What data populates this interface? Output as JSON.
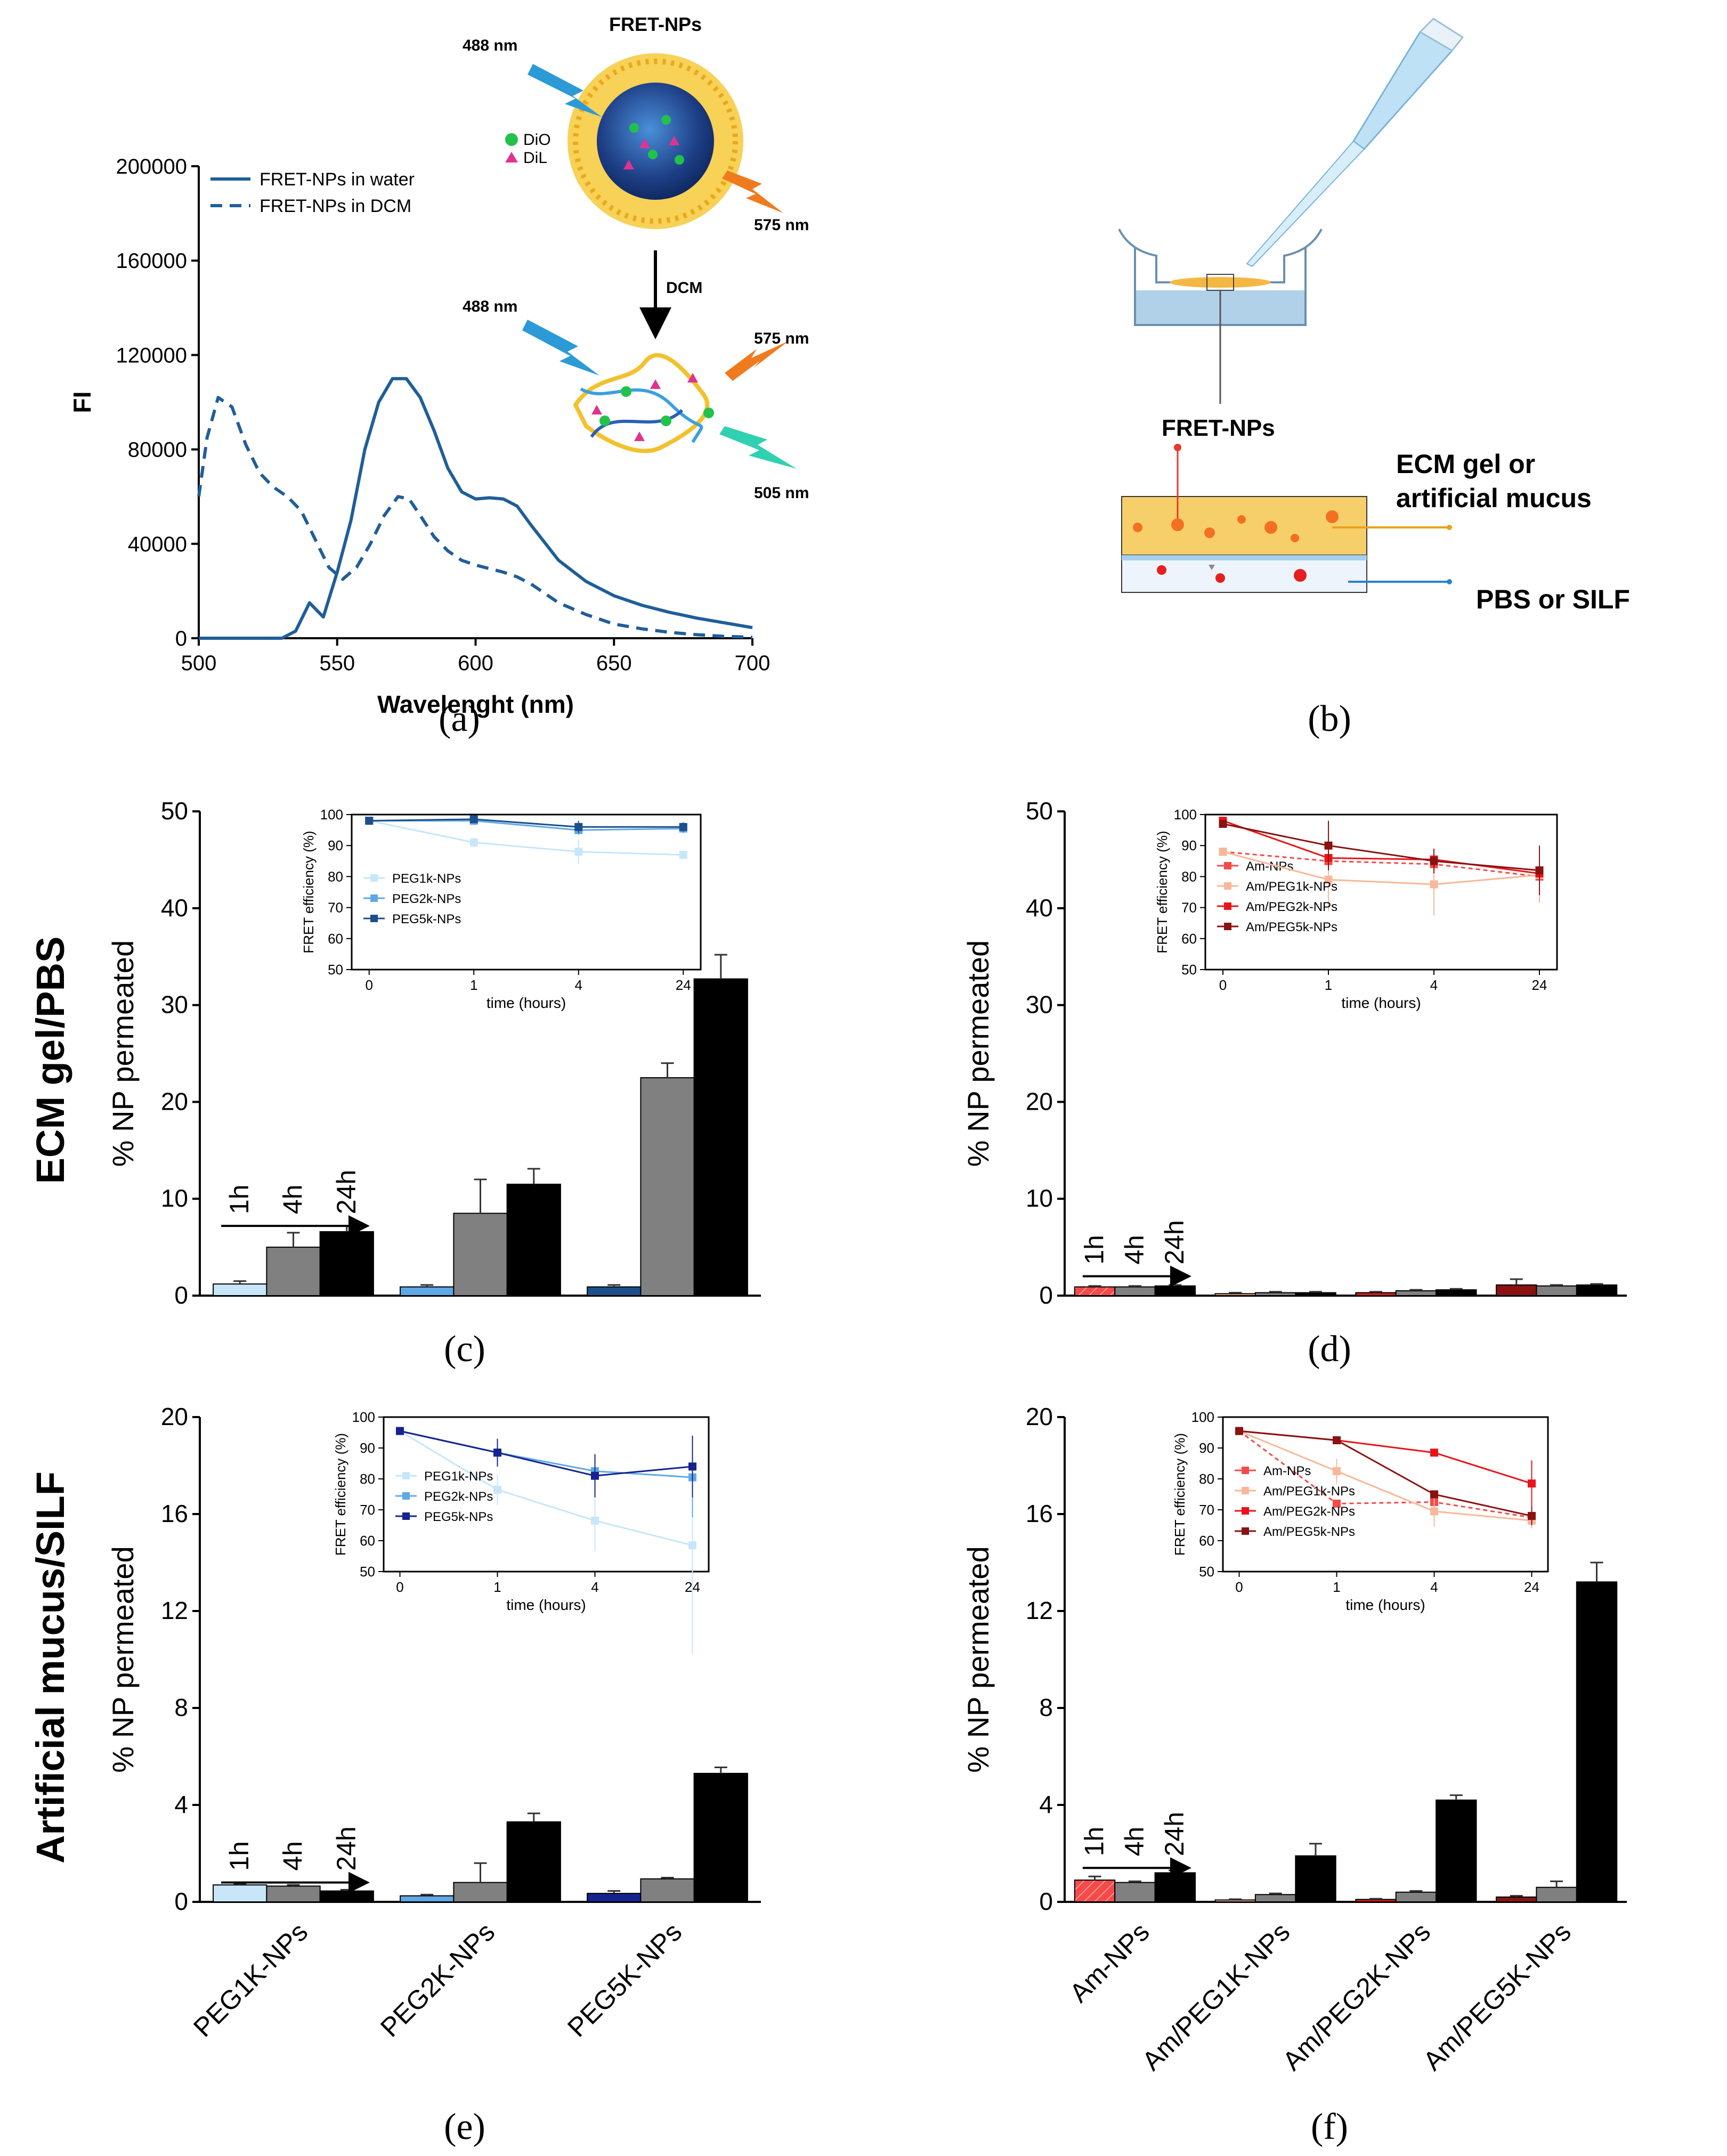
{
  "panel_labels": {
    "a": "(a)",
    "b": "(b)",
    "c": "(c)",
    "d": "(d)",
    "e": "(e)",
    "f": "(f)"
  },
  "row_labels": {
    "ecm": "ECM gel/PBS",
    "mucus": "Artificial mucus/SILF"
  },
  "colors": {
    "water_line": "#1f5e99",
    "peg1k": "#c7e6fa",
    "peg2k": "#5fa8e6",
    "peg5k": "#1c4f8c",
    "peg5k_e": "#14238f",
    "am": "#f54a4a",
    "am1k": "#f7b89a",
    "am2k": "#e8141a",
    "am5k": "#8a1212",
    "bar_4h": "#808080",
    "bar_24h": "#000000"
  },
  "schematic_a": {
    "title": "FRET-NPs",
    "dio": "DiO",
    "dil": "DiL",
    "ex1": "488 nm",
    "em1": "575 nm",
    "dcm": "DCM",
    "ex2": "488 nm",
    "em2": "575 nm",
    "em3": "505 nm"
  },
  "schematic_b": {
    "fret": "FRET-NPs",
    "layer_top_1": "ECM gel or",
    "layer_top_2": "artificial mucus",
    "layer_bottom": "PBS or SILF"
  },
  "chart_data": [
    {
      "id": "a",
      "type": "line",
      "title": "",
      "xlabel": "Wavelenght (nm)",
      "ylabel": "FI",
      "xlim": [
        500,
        700
      ],
      "ylim": [
        0,
        200000
      ],
      "xticks": [
        500,
        550,
        600,
        650,
        700
      ],
      "yticks": [
        0,
        40000,
        80000,
        120000,
        160000,
        200000
      ],
      "series": [
        {
          "name": "FRET-NPs in water",
          "style": "solid",
          "x": [
            500,
            520,
            530,
            535,
            540,
            545,
            550,
            555,
            560,
            565,
            570,
            575,
            580,
            585,
            590,
            595,
            600,
            605,
            610,
            615,
            620,
            630,
            640,
            650,
            660,
            670,
            680,
            690,
            700
          ],
          "y": [
            0,
            0,
            0,
            3000,
            15000,
            9000,
            28000,
            50000,
            80000,
            100000,
            110000,
            110000,
            102000,
            88000,
            72000,
            62000,
            59000,
            59500,
            59000,
            56000,
            48000,
            33000,
            24000,
            18000,
            14000,
            11000,
            8500,
            6500,
            4500
          ]
        },
        {
          "name": "FRET-NPs in DCM",
          "style": "dashed",
          "x": [
            500,
            503,
            507,
            512,
            517,
            522,
            527,
            532,
            537,
            542,
            547,
            552,
            557,
            562,
            567,
            572,
            576,
            580,
            585,
            590,
            595,
            600,
            605,
            610,
            615,
            620,
            630,
            640,
            650,
            660,
            670,
            680,
            690,
            700
          ],
          "y": [
            60000,
            85000,
            102000,
            98000,
            82000,
            70000,
            64000,
            60000,
            54000,
            42000,
            30000,
            25000,
            30000,
            40000,
            52000,
            60000,
            59000,
            52000,
            43000,
            37000,
            33000,
            31000,
            29500,
            28000,
            26000,
            23000,
            15000,
            10000,
            6000,
            4000,
            2500,
            1500,
            800,
            400
          ]
        }
      ]
    },
    {
      "id": "c",
      "type": "bar",
      "ylabel": "% NP permeated",
      "ylim": [
        0,
        50
      ],
      "yticks": [
        0,
        10,
        20,
        30,
        40,
        50
      ],
      "categories": [
        "PEG1K-NPs",
        "PEG2K-NPs",
        "PEG5K-NPs"
      ],
      "series": [
        {
          "name": "1h",
          "values": [
            1.2,
            0.9,
            0.9
          ],
          "errors": [
            0.3,
            0.2,
            0.2
          ]
        },
        {
          "name": "4h",
          "values": [
            5.0,
            8.5,
            22.5
          ],
          "errors": [
            1.5,
            3.5,
            1.5
          ]
        },
        {
          "name": "24h",
          "values": [
            6.6,
            11.5,
            32.7
          ],
          "errors": [
            0.6,
            1.6,
            2.5
          ]
        }
      ],
      "time_labels": [
        "1h",
        "4h",
        "24h"
      ],
      "inset": {
        "xlabel": "time (hours)",
        "ylabel": "FRET efficiency (%)",
        "xcats": [
          "0",
          "1",
          "4",
          "24"
        ],
        "ylim": [
          50,
          100
        ],
        "yticks": [
          50,
          60,
          70,
          80,
          90,
          100
        ],
        "series": [
          {
            "name": "PEG1k-NPs",
            "values": [
              98,
              91,
              88,
              87
            ],
            "errors": [
              0.5,
              1.5,
              4,
              1
            ]
          },
          {
            "name": "PEG2k-NPs",
            "values": [
              98,
              98,
              95,
              95.5
            ],
            "errors": [
              0.5,
              0.5,
              1.5,
              1.5
            ]
          },
          {
            "name": "PEG5k-NPs",
            "values": [
              98,
              98.5,
              96,
              96
            ],
            "errors": [
              0.5,
              0.5,
              2,
              1.5
            ]
          }
        ]
      }
    },
    {
      "id": "d",
      "type": "bar",
      "ylabel": "% NP permeated",
      "ylim": [
        0,
        50
      ],
      "yticks": [
        0,
        10,
        20,
        30,
        40,
        50
      ],
      "categories": [
        "Am-NPs",
        "Am/PEG1K-NPs",
        "Am/PEG2K-NPs",
        "Am/PEG5K-NPs"
      ],
      "series": [
        {
          "name": "1h",
          "values": [
            0.9,
            0.2,
            0.3,
            1.1
          ],
          "errors": [
            0.1,
            0.1,
            0.1,
            0.6
          ]
        },
        {
          "name": "4h",
          "values": [
            0.9,
            0.3,
            0.5,
            1.0
          ],
          "errors": [
            0.1,
            0.1,
            0.1,
            0.1
          ]
        },
        {
          "name": "24h",
          "values": [
            1.0,
            0.3,
            0.6,
            1.1
          ],
          "errors": [
            0.1,
            0.1,
            0.1,
            0.1
          ]
        }
      ],
      "time_labels": [
        "1h",
        "4h",
        "24h"
      ],
      "inset": {
        "xlabel": "time (hours)",
        "ylabel": "FRET efficiency (%)",
        "xcats": [
          "0",
          "1",
          "4",
          "24"
        ],
        "ylim": [
          50,
          100
        ],
        "yticks": [
          50,
          60,
          70,
          80,
          90,
          100
        ],
        "series": [
          {
            "name": "Am-NPs",
            "values": [
              88,
              85,
              84,
              80
            ],
            "errors": [
              0.5,
              3,
              3,
              4
            ]
          },
          {
            "name": "Am/PEG1k-NPs",
            "values": [
              88,
              79,
              77.5,
              80.5
            ],
            "errors": [
              0.5,
              10,
              10,
              9
            ]
          },
          {
            "name": "Am/PEG2k-NPs",
            "values": [
              98,
              86,
              85.5,
              81
            ],
            "errors": [
              0.5,
              4,
              3,
              6
            ]
          },
          {
            "name": "Am/PEG5k-NPs",
            "values": [
              97,
              90,
              85,
              82
            ],
            "errors": [
              0.5,
              8,
              4,
              8
            ]
          }
        ]
      }
    },
    {
      "id": "e",
      "type": "bar",
      "ylabel": "% NP permeated",
      "ylim": [
        0,
        20
      ],
      "yticks": [
        0,
        4,
        8,
        12,
        16,
        20
      ],
      "categories": [
        "PEG1K-NPs",
        "PEG2K-NPs",
        "PEG5K-NPs"
      ],
      "series": [
        {
          "name": "1h",
          "values": [
            0.7,
            0.25,
            0.35
          ],
          "errors": [
            0.05,
            0.05,
            0.1
          ]
        },
        {
          "name": "4h",
          "values": [
            0.65,
            0.8,
            0.95
          ],
          "errors": [
            0.05,
            0.8,
            0.05
          ]
        },
        {
          "name": "24h",
          "values": [
            0.45,
            3.3,
            5.3
          ],
          "errors": [
            0.05,
            0.35,
            0.25
          ]
        }
      ],
      "time_labels": [
        "1h",
        "4h",
        "24h"
      ],
      "inset": {
        "xlabel": "time (hours)",
        "ylabel": "FRET efficiency (%)",
        "xcats": [
          "0",
          "1",
          "4",
          "24"
        ],
        "ylim": [
          50,
          100
        ],
        "yticks": [
          50,
          60,
          70,
          80,
          90,
          100
        ],
        "series": [
          {
            "name": "PEG1k-NPs",
            "values": [
              95.5,
              76.5,
              66.5,
              58.5
            ],
            "errors": [
              0.5,
              5,
              10,
              35
            ]
          },
          {
            "name": "PEG2k-NPs",
            "values": [
              95.5,
              88.5,
              82.5,
              80.5
            ],
            "errors": [
              0.5,
              3,
              5,
              13
            ]
          },
          {
            "name": "PEG5k-NPs",
            "values": [
              95.5,
              88.5,
              81,
              84
            ],
            "errors": [
              0.5,
              4.5,
              7,
              10
            ]
          }
        ]
      }
    },
    {
      "id": "f",
      "type": "bar",
      "ylabel": "% NP permeated",
      "ylim": [
        0,
        20
      ],
      "yticks": [
        0,
        4,
        8,
        12,
        16,
        20
      ],
      "categories": [
        "Am-NPs",
        "Am/PEG1K-NPs",
        "Am/PEG2K-NPs",
        "Am/PEG5K-NPs"
      ],
      "series": [
        {
          "name": "1h",
          "values": [
            0.9,
            0.08,
            0.1,
            0.2
          ],
          "errors": [
            0.15,
            0.03,
            0.03,
            0.05
          ]
        },
        {
          "name": "4h",
          "values": [
            0.8,
            0.3,
            0.4,
            0.6
          ],
          "errors": [
            0.05,
            0.05,
            0.05,
            0.25
          ]
        },
        {
          "name": "24h",
          "values": [
            1.2,
            1.9,
            4.2,
            13.2
          ],
          "errors": [
            0.1,
            0.5,
            0.2,
            0.8
          ]
        }
      ],
      "time_labels": [
        "1h",
        "4h",
        "24h"
      ],
      "inset": {
        "xlabel": "time (hours)",
        "ylabel": "FRET efficiency (%)",
        "xcats": [
          "0",
          "1",
          "4",
          "24"
        ],
        "ylim": [
          50,
          100
        ],
        "yticks": [
          50,
          60,
          70,
          80,
          90,
          100
        ],
        "series": [
          {
            "name": "Am-NPs",
            "values": [
              95.5,
              72,
              72.5,
              67.5
            ],
            "errors": [
              0.5,
              0.5,
              2,
              2
            ]
          },
          {
            "name": "Am/PEG1k-NPs",
            "values": [
              95.5,
              82.5,
              69.5,
              66.5
            ],
            "errors": [
              0.5,
              4,
              5,
              2.5
            ]
          },
          {
            "name": "Am/PEG2k-NPs",
            "values": [
              95.5,
              92.5,
              88.5,
              78.5
            ],
            "errors": [
              0.5,
              0.5,
              0.5,
              7.5
            ]
          },
          {
            "name": "Am/PEG5k-NPs",
            "values": [
              95.5,
              92.5,
              75,
              68
            ],
            "errors": [
              0.5,
              0.5,
              1,
              3
            ]
          }
        ]
      }
    }
  ]
}
